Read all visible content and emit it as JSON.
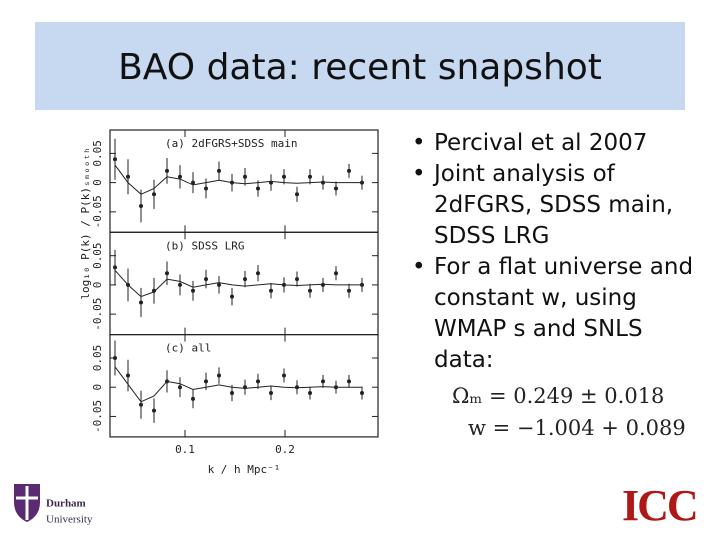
{
  "header": {
    "title": "BAO data: recent snapshot"
  },
  "bullets": [
    "Percival et al 2007",
    "Joint analysis of 2dFGRS, SDSS main, SDSS LRG",
    "For a flat universe and constant w, using WMAP s and SNLS data:"
  ],
  "equations": [
    "Ωₘ = 0.249 ± 0.018",
    "w = −1.004 + 0.089"
  ],
  "figure": {
    "ylabel": "log₁₀ P(k) / P(k)ₛₘₒₒₜₕ",
    "xlabel": "k / h Mpc⁻¹",
    "xlim": [
      0.025,
      0.293
    ],
    "xticks": [
      0.1,
      0.2
    ],
    "ylim": [
      -0.085,
      0.09
    ],
    "yticks": [
      -0.05,
      0,
      0.05
    ],
    "x": [
      0.03,
      0.043,
      0.056,
      0.069,
      0.082,
      0.095,
      0.108,
      0.121,
      0.134,
      0.147,
      0.16,
      0.173,
      0.186,
      0.199,
      0.212,
      0.225,
      0.238,
      0.251,
      0.264,
      0.277
    ],
    "panels": [
      {
        "label": "(a) 2dFGRS+SDSS main",
        "values": [
          0.04,
          0.01,
          -0.04,
          -0.02,
          0.02,
          0.01,
          0.0,
          -0.01,
          0.02,
          0.0,
          0.01,
          -0.01,
          0.0,
          0.01,
          -0.02,
          0.01,
          0.0,
          -0.01,
          0.02,
          0.0
        ],
        "errors": [
          0.035,
          0.03,
          0.028,
          0.025,
          0.022,
          0.02,
          0.018,
          0.017,
          0.016,
          0.015,
          0.015,
          0.014,
          0.014,
          0.013,
          0.013,
          0.013,
          0.012,
          0.012,
          0.012,
          0.012
        ],
        "model": [
          0.03,
          0.0,
          -0.02,
          -0.01,
          0.01,
          0.006,
          -0.004,
          0.0,
          0.004,
          0.0,
          -0.002,
          0.0,
          0.002,
          0.0,
          -0.001,
          0.0,
          0.001,
          0.0,
          0.0,
          0.0
        ]
      },
      {
        "label": "(b) SDSS LRG",
        "values": [
          0.03,
          0.0,
          -0.03,
          -0.01,
          0.02,
          0.0,
          -0.01,
          0.01,
          0.0,
          -0.02,
          0.01,
          0.02,
          -0.01,
          0.0,
          0.01,
          -0.01,
          0.0,
          0.02,
          -0.01,
          0.0
        ],
        "errors": [
          0.03,
          0.028,
          0.025,
          0.022,
          0.02,
          0.018,
          0.017,
          0.016,
          0.015,
          0.015,
          0.014,
          0.014,
          0.013,
          0.013,
          0.013,
          0.012,
          0.012,
          0.012,
          0.012,
          0.012
        ],
        "model": [
          0.025,
          0.0,
          -0.02,
          -0.012,
          0.01,
          0.006,
          -0.004,
          0.0,
          0.004,
          0.0,
          -0.002,
          0.0,
          0.002,
          0.0,
          -0.001,
          0.0,
          0.001,
          0.0,
          0.0,
          0.0
        ]
      },
      {
        "label": "(c) all",
        "values": [
          0.05,
          0.02,
          -0.03,
          -0.04,
          0.01,
          0.0,
          -0.02,
          0.01,
          0.02,
          -0.01,
          0.0,
          0.01,
          -0.01,
          0.02,
          0.0,
          -0.01,
          0.01,
          0.0,
          0.01,
          -0.01
        ],
        "errors": [
          0.03,
          0.027,
          0.024,
          0.021,
          0.019,
          0.017,
          0.016,
          0.015,
          0.014,
          0.014,
          0.013,
          0.013,
          0.012,
          0.012,
          0.012,
          0.011,
          0.011,
          0.011,
          0.011,
          0.011
        ],
        "model": [
          0.035,
          0.005,
          -0.025,
          -0.015,
          0.01,
          0.006,
          -0.004,
          0.0,
          0.004,
          0.0,
          -0.002,
          0.0,
          0.002,
          0.0,
          -0.001,
          0.0,
          0.001,
          0.0,
          0.0,
          0.0
        ]
      }
    ]
  },
  "logos": {
    "durham": [
      "Durham",
      "University"
    ],
    "icc": "ICC"
  }
}
